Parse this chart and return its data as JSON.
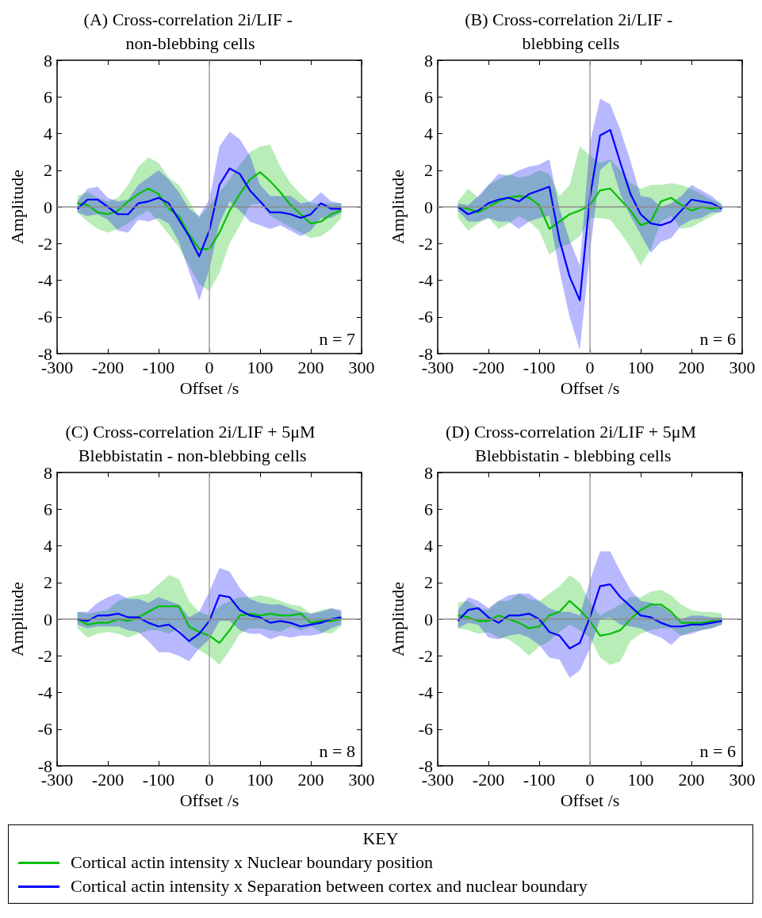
{
  "chart_data": [
    {
      "type": "line",
      "title": "(A) Cross-correlation 2i/LIF - non-blebbing cells",
      "xlabel": "Offset /s",
      "ylabel": "Amplitude",
      "annotations": [
        "n = 7"
      ],
      "xlim": [
        -300,
        300
      ],
      "xticks": [
        -300,
        -200,
        -100,
        0,
        100,
        200,
        300
      ],
      "ylim": [
        -8,
        8
      ],
      "yticks": [
        -8,
        -6,
        -4,
        -2,
        0,
        2,
        4,
        6,
        8
      ],
      "grid": false,
      "legend": "bottom",
      "legend_title": "KEY",
      "marker": "none",
      "ref_lines": [
        {
          "axis": "x",
          "value": 0,
          "color": "#a0a0a0"
        },
        {
          "axis": "y",
          "value": 0,
          "color": "#8c8c8c"
        }
      ],
      "x": [
        -260,
        -240,
        -220,
        -200,
        -180,
        -160,
        -140,
        -120,
        -100,
        -80,
        -60,
        -40,
        -20,
        0,
        20,
        40,
        60,
        80,
        100,
        120,
        140,
        160,
        180,
        200,
        220,
        240,
        260
      ],
      "series": [
        {
          "name": "Cortical actin intensity x Nuclear boundary position",
          "color": "#00c000",
          "values": [
            0.2,
            0.1,
            -0.3,
            -0.4,
            -0.2,
            0.3,
            0.7,
            1.0,
            0.7,
            -0.1,
            -0.5,
            -1.5,
            -2.3,
            -2.3,
            -1.4,
            -0.2,
            0.7,
            1.5,
            1.9,
            1.4,
            0.8,
            0.1,
            -0.4,
            -0.9,
            -0.8,
            -0.4,
            -0.2
          ],
          "lower": [
            -0.3,
            -0.8,
            -1.2,
            -1.4,
            -1.2,
            -0.9,
            -0.5,
            -0.2,
            -0.8,
            -1.5,
            -2.2,
            -3.2,
            -4.2,
            -4.6,
            -3.6,
            -2.0,
            -1.0,
            0.1,
            0.2,
            -0.5,
            -0.8,
            -1.1,
            -1.4,
            -1.7,
            -1.6,
            -1.2,
            -0.6
          ],
          "upper": [
            0.6,
            0.8,
            0.5,
            0.3,
            0.5,
            1.2,
            2.2,
            2.7,
            2.4,
            1.6,
            1.2,
            0.3,
            -0.6,
            0.1,
            0.8,
            1.5,
            2.3,
            3.0,
            3.3,
            3.4,
            2.2,
            1.3,
            0.7,
            0.2,
            0.2,
            0.2,
            0.2
          ]
        },
        {
          "name": "Cortical actin intensity x Separation between cortex and nuclear boundary",
          "color": "#0000ff",
          "values": [
            -0.1,
            0.4,
            0.4,
            0.0,
            -0.4,
            -0.4,
            0.2,
            0.3,
            0.5,
            0.2,
            -0.7,
            -1.6,
            -2.7,
            -1.3,
            1.2,
            2.1,
            1.8,
            0.9,
            0.3,
            -0.3,
            -0.3,
            -0.4,
            -0.6,
            -0.4,
            0.2,
            -0.1,
            -0.1
          ],
          "lower": [
            -0.3,
            -0.5,
            -0.4,
            -0.7,
            -1.3,
            -1.4,
            -0.7,
            -0.8,
            -0.6,
            -0.9,
            -1.9,
            -3.5,
            -5.1,
            -3.4,
            -0.9,
            0.3,
            -0.2,
            -0.8,
            -1.0,
            -1.2,
            -1.0,
            -1.3,
            -1.6,
            -1.3,
            -0.6,
            -0.6,
            -0.3
          ],
          "upper": [
            0.3,
            1.0,
            1.1,
            0.5,
            0.3,
            0.4,
            1.2,
            1.6,
            2.0,
            1.5,
            0.8,
            -0.1,
            -0.5,
            0.4,
            3.3,
            4.1,
            3.7,
            2.8,
            1.2,
            0.6,
            0.6,
            0.6,
            0.2,
            0.3,
            0.8,
            0.3,
            0.2
          ]
        }
      ]
    },
    {
      "type": "line",
      "title": "(B) Cross-correlation 2i/LIF - blebbing cells",
      "xlabel": "Offset /s",
      "ylabel": "Amplitude",
      "annotations": [
        "n = 6"
      ],
      "xlim": [
        -300,
        300
      ],
      "xticks": [
        -300,
        -200,
        -100,
        0,
        100,
        200,
        300
      ],
      "ylim": [
        -8,
        8
      ],
      "yticks": [
        -8,
        -6,
        -4,
        -2,
        0,
        2,
        4,
        6,
        8
      ],
      "grid": false,
      "legend": false,
      "marker": "none",
      "ref_lines": [
        {
          "axis": "x",
          "value": 0,
          "color": "#a0a0a0"
        },
        {
          "axis": "y",
          "value": 0,
          "color": "#8c8c8c"
        }
      ],
      "x": [
        -260,
        -240,
        -220,
        -200,
        -180,
        -160,
        -140,
        -120,
        -100,
        -80,
        -60,
        -40,
        -20,
        0,
        20,
        40,
        60,
        80,
        100,
        120,
        140,
        160,
        180,
        200,
        220,
        240,
        260
      ],
      "series": [
        {
          "color": "#00c000",
          "values": [
            0.0,
            -0.1,
            -0.3,
            0.0,
            0.3,
            0.5,
            0.6,
            0.5,
            0.1,
            -1.2,
            -0.8,
            -0.4,
            -0.2,
            0.1,
            0.9,
            1.0,
            0.4,
            -0.2,
            -1.0,
            -0.8,
            0.3,
            0.5,
            0.1,
            -0.2,
            0.0,
            -0.1,
            0.0
          ],
          "lower": [
            -0.6,
            -1.3,
            -0.9,
            -0.6,
            -1.2,
            -0.9,
            -0.5,
            -0.8,
            -1.3,
            -2.6,
            -2.2,
            -2.0,
            -1.6,
            -0.6,
            -0.6,
            -0.7,
            -1.4,
            -2.2,
            -3.2,
            -2.3,
            -0.8,
            -0.5,
            -1.2,
            -1.1,
            -0.8,
            -0.5,
            -0.2
          ],
          "upper": [
            0.3,
            1.0,
            0.5,
            1.2,
            1.5,
            1.8,
            1.6,
            1.7,
            2.0,
            1.8,
            0.6,
            1.2,
            3.3,
            2.8,
            2.4,
            2.6,
            2.0,
            1.3,
            1.0,
            1.2,
            1.2,
            1.3,
            1.2,
            1.0,
            0.7,
            0.4,
            0.2
          ]
        },
        {
          "color": "#0000ff",
          "values": [
            0.0,
            -0.4,
            -0.2,
            0.2,
            0.4,
            0.5,
            0.3,
            0.7,
            0.9,
            1.1,
            -1.8,
            -3.8,
            -5.1,
            0.5,
            3.9,
            4.2,
            2.4,
            0.7,
            -0.4,
            -0.9,
            -1.0,
            -0.8,
            -0.2,
            0.4,
            0.3,
            0.2,
            -0.1
          ],
          "lower": [
            -0.2,
            -0.8,
            -0.8,
            -0.6,
            -0.8,
            -0.8,
            -1.2,
            -0.8,
            -0.6,
            -0.5,
            -3.5,
            -6.0,
            -7.8,
            -2.5,
            2.0,
            2.5,
            0.7,
            -0.5,
            -1.5,
            -2.5,
            -1.9,
            -1.7,
            -1.0,
            -0.7,
            -0.6,
            -0.3,
            -0.3
          ],
          "upper": [
            0.2,
            0.1,
            0.6,
            1.2,
            1.8,
            1.7,
            2.0,
            2.2,
            2.3,
            2.6,
            -0.1,
            -1.8,
            -3.2,
            3.5,
            5.9,
            5.6,
            4.2,
            2.5,
            0.6,
            0.5,
            0.0,
            0.2,
            0.6,
            1.2,
            0.9,
            0.6,
            0.1
          ]
        }
      ]
    },
    {
      "type": "line",
      "title": "(C) Cross-correlation 2i/LIF + 5μM Blebbistatin - non-blebbing cells",
      "xlabel": "Offset /s",
      "ylabel": "Amplitude",
      "annotations": [
        "n = 8"
      ],
      "xlim": [
        -300,
        300
      ],
      "xticks": [
        -300,
        -200,
        -100,
        0,
        100,
        200,
        300
      ],
      "ylim": [
        -8,
        8
      ],
      "yticks": [
        -8,
        -6,
        -4,
        -2,
        0,
        2,
        4,
        6,
        8
      ],
      "grid": false,
      "legend": false,
      "marker": "none",
      "ref_lines": [
        {
          "axis": "x",
          "value": 0,
          "color": "#a0a0a0"
        },
        {
          "axis": "y",
          "value": 0,
          "color": "#8c8c8c"
        }
      ],
      "x": [
        -260,
        -240,
        -220,
        -200,
        -180,
        -160,
        -140,
        -120,
        -100,
        -80,
        -60,
        -40,
        -20,
        0,
        20,
        40,
        60,
        80,
        100,
        120,
        140,
        160,
        180,
        200,
        220,
        240,
        260
      ],
      "series": [
        {
          "color": "#00c000",
          "values": [
            0.0,
            -0.3,
            -0.2,
            -0.2,
            0.0,
            -0.1,
            0.1,
            0.4,
            0.7,
            0.7,
            0.7,
            -0.4,
            -0.7,
            -0.9,
            -1.3,
            -0.6,
            0.2,
            0.3,
            0.2,
            0.3,
            0.2,
            0.2,
            0.3,
            -0.2,
            -0.1,
            -0.1,
            0.0
          ],
          "lower": [
            -0.5,
            -1.0,
            -0.8,
            -0.7,
            -0.8,
            -1.0,
            -0.8,
            -0.6,
            -0.6,
            -0.8,
            -0.5,
            -1.3,
            -1.7,
            -2.0,
            -2.5,
            -1.7,
            -0.8,
            -0.5,
            -0.5,
            -0.6,
            -0.7,
            -0.4,
            -0.6,
            -0.4,
            -0.7,
            -0.8,
            -0.4
          ],
          "upper": [
            0.4,
            0.3,
            0.4,
            0.5,
            1.0,
            1.2,
            1.3,
            1.4,
            1.9,
            2.4,
            2.2,
            1.0,
            0.4,
            0.2,
            0.7,
            1.0,
            1.2,
            1.2,
            1.3,
            1.2,
            1.0,
            0.8,
            0.7,
            0.3,
            0.5,
            0.6,
            0.4
          ]
        },
        {
          "color": "#0000ff",
          "values": [
            0.0,
            -0.1,
            0.2,
            0.2,
            0.3,
            0.1,
            0.1,
            -0.2,
            -0.4,
            -0.3,
            -0.7,
            -1.2,
            -0.8,
            -0.1,
            1.3,
            1.2,
            0.5,
            0.2,
            0.1,
            -0.2,
            -0.1,
            -0.2,
            -0.4,
            -0.3,
            -0.2,
            0.0,
            0.1
          ],
          "lower": [
            -0.3,
            -0.5,
            -0.4,
            -0.4,
            -0.4,
            -0.6,
            -0.7,
            -1.2,
            -1.8,
            -1.8,
            -2.0,
            -2.3,
            -1.6,
            -1.1,
            -0.1,
            -0.1,
            -0.6,
            -0.8,
            -0.8,
            -1.1,
            -0.9,
            -1.0,
            -0.9,
            -0.9,
            -0.8,
            -0.5,
            -0.3
          ],
          "upper": [
            0.4,
            0.4,
            0.9,
            1.2,
            1.4,
            1.1,
            1.1,
            0.9,
            1.2,
            1.0,
            0.8,
            0.1,
            0.4,
            1.5,
            2.8,
            2.6,
            1.7,
            1.1,
            0.9,
            0.8,
            0.8,
            0.6,
            0.4,
            0.3,
            0.4,
            0.6,
            0.5
          ]
        }
      ]
    },
    {
      "type": "line",
      "title": "(D) Cross-correlation 2i/LIF + 5μM Blebbistatin - blebbing cells",
      "xlabel": "Offset /s",
      "ylabel": "Amplitude",
      "annotations": [
        "n = 6"
      ],
      "xlim": [
        -300,
        300
      ],
      "xticks": [
        -300,
        -200,
        -100,
        0,
        100,
        200,
        300
      ],
      "ylim": [
        -8,
        8
      ],
      "yticks": [
        -8,
        -6,
        -4,
        -2,
        0,
        2,
        4,
        6,
        8
      ],
      "grid": false,
      "legend": false,
      "marker": "none",
      "ref_lines": [
        {
          "axis": "x",
          "value": 0,
          "color": "#a0a0a0"
        },
        {
          "axis": "y",
          "value": 0,
          "color": "#8c8c8c"
        }
      ],
      "x": [
        -260,
        -240,
        -220,
        -200,
        -180,
        -160,
        -140,
        -120,
        -100,
        -80,
        -60,
        -40,
        -20,
        0,
        20,
        40,
        60,
        80,
        100,
        120,
        140,
        160,
        180,
        200,
        220,
        240,
        260
      ],
      "series": [
        {
          "color": "#00c000",
          "values": [
            0.2,
            0.1,
            -0.1,
            -0.1,
            0.2,
            0.0,
            -0.2,
            -0.5,
            -0.4,
            0.2,
            0.4,
            1.0,
            0.5,
            -0.1,
            -0.9,
            -0.8,
            -0.6,
            0.0,
            0.5,
            0.8,
            0.8,
            0.4,
            -0.2,
            -0.2,
            -0.2,
            -0.1,
            -0.1
          ],
          "lower": [
            -0.5,
            -0.6,
            -0.8,
            -0.7,
            -1.0,
            -1.1,
            -1.5,
            -2.0,
            -1.5,
            -1.2,
            -0.7,
            -0.3,
            -0.6,
            -1.0,
            -2.1,
            -2.5,
            -2.3,
            -1.2,
            -0.8,
            -0.6,
            -0.5,
            -0.5,
            -0.9,
            -0.7,
            -0.6,
            -0.5,
            -0.3
          ],
          "upper": [
            0.9,
            1.0,
            0.6,
            0.5,
            1.0,
            1.0,
            1.4,
            1.1,
            1.0,
            1.4,
            1.8,
            2.4,
            2.0,
            0.9,
            0.2,
            0.5,
            0.8,
            1.2,
            1.2,
            1.5,
            1.6,
            1.3,
            0.8,
            0.5,
            0.4,
            0.4,
            0.3
          ]
        },
        {
          "color": "#0000ff",
          "values": [
            -0.1,
            0.5,
            0.6,
            0.1,
            -0.2,
            0.2,
            0.2,
            0.3,
            0.0,
            -0.7,
            -0.9,
            -1.6,
            -1.3,
            0.1,
            1.8,
            1.9,
            1.2,
            0.7,
            0.2,
            0.1,
            -0.2,
            -0.4,
            -0.4,
            -0.3,
            -0.3,
            -0.2,
            -0.1
          ],
          "lower": [
            -0.5,
            -0.2,
            -0.3,
            -1.0,
            -1.1,
            -0.9,
            -0.8,
            -1.0,
            -1.4,
            -2.1,
            -2.2,
            -3.2,
            -2.8,
            -1.6,
            0.0,
            0.1,
            -0.3,
            -0.4,
            -0.5,
            -0.8,
            -1.0,
            -1.4,
            -0.9,
            -0.8,
            -0.6,
            -0.5,
            -0.3
          ],
          "upper": [
            0.5,
            1.2,
            1.0,
            0.6,
            1.0,
            1.3,
            1.4,
            1.4,
            1.0,
            0.6,
            0.4,
            0.4,
            0.2,
            2.1,
            3.7,
            3.7,
            2.6,
            1.6,
            1.0,
            0.9,
            0.7,
            0.3,
            0.0,
            0.2,
            0.2,
            0.1,
            0.1
          ]
        }
      ]
    }
  ]
}
